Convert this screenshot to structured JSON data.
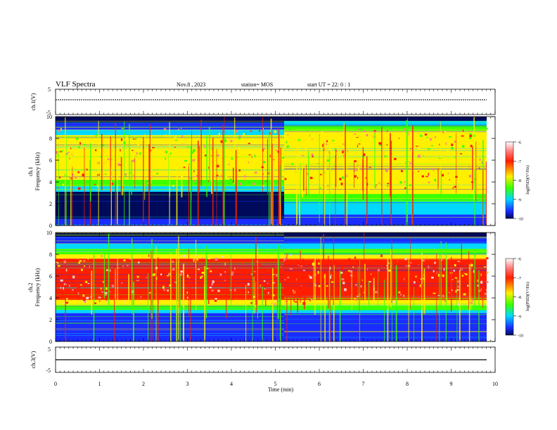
{
  "header": {
    "title": "VLF Spectra",
    "date": "Nov.8 , 2023",
    "station": "station= MOS",
    "start": "start UT =  22: 0 : 1"
  },
  "panels": {
    "ch1": {
      "label": "ch.1(V)"
    },
    "ch3": {
      "label": "ch.3(V)"
    },
    "spec1": {
      "label_line1": "ch.1",
      "label_line2": "Frequency (kHz)"
    },
    "spec2": {
      "label_line1": "ch.2",
      "label_line2": "Frequency (kHz)"
    }
  },
  "colorbar": {
    "label": "log(PSD)(V²/Hz)",
    "ticks": [
      "-6",
      "-7",
      "-8",
      "-9",
      "-10"
    ]
  },
  "colors": {
    "background_dark": "#000a5a",
    "low": "#1a2cff",
    "mid_low": "#00d8ff",
    "mid": "#3cff00",
    "mid_high": "#fff000",
    "high": "#ff1e00",
    "peak": "#ff8080"
  },
  "chart_data": [
    {
      "type": "line",
      "name": "ch.1 waveform",
      "ylabel": "ch.1(V)",
      "xlim": [
        0,
        10
      ],
      "ylim": [
        -5,
        5
      ],
      "yticks": [
        "5",
        "-5"
      ],
      "x": [
        0,
        9.8
      ],
      "y": [
        0,
        0
      ]
    },
    {
      "type": "heatmap",
      "ylabel": "Frequency (kHz)",
      "xlim": [
        0,
        10
      ],
      "ylim": [
        0,
        10
      ],
      "xticks": [
        "0",
        "1",
        "2",
        "3",
        "4",
        "5",
        "6",
        "7",
        "8",
        "9",
        "10"
      ],
      "yticks": [
        "0",
        "2",
        "4",
        "6",
        "8",
        "10"
      ],
      "zlabel": "log(PSD)(V²/Hz)",
      "zlim": [
        -10,
        -6
      ]
    },
    {
      "type": "heatmap",
      "ylabel": "Frequency (kHz)",
      "xlim": [
        0,
        10
      ],
      "ylim": [
        0,
        10
      ],
      "xticks": [
        "0",
        "1",
        "2",
        "3",
        "4",
        "5",
        "6",
        "7",
        "8",
        "9",
        "10"
      ],
      "yticks": [
        "0",
        "2",
        "4",
        "6",
        "8",
        "10"
      ],
      "zlabel": "log(PSD)(V²/Hz)",
      "zlim": [
        -10,
        -6
      ]
    },
    {
      "type": "line",
      "name": "ch.3 waveform",
      "ylabel": "ch.3(V)",
      "xlabel": "Time (min)",
      "xlim": [
        0,
        10
      ],
      "ylim": [
        -5,
        5
      ],
      "yticks": [
        "5",
        "-5"
      ],
      "xticks": [
        "0",
        "1",
        "2",
        "3",
        "4",
        "5",
        "6",
        "7",
        "8",
        "9",
        "10"
      ],
      "x": [
        0,
        9.8
      ],
      "y": [
        -0.5,
        -0.5
      ]
    }
  ]
}
